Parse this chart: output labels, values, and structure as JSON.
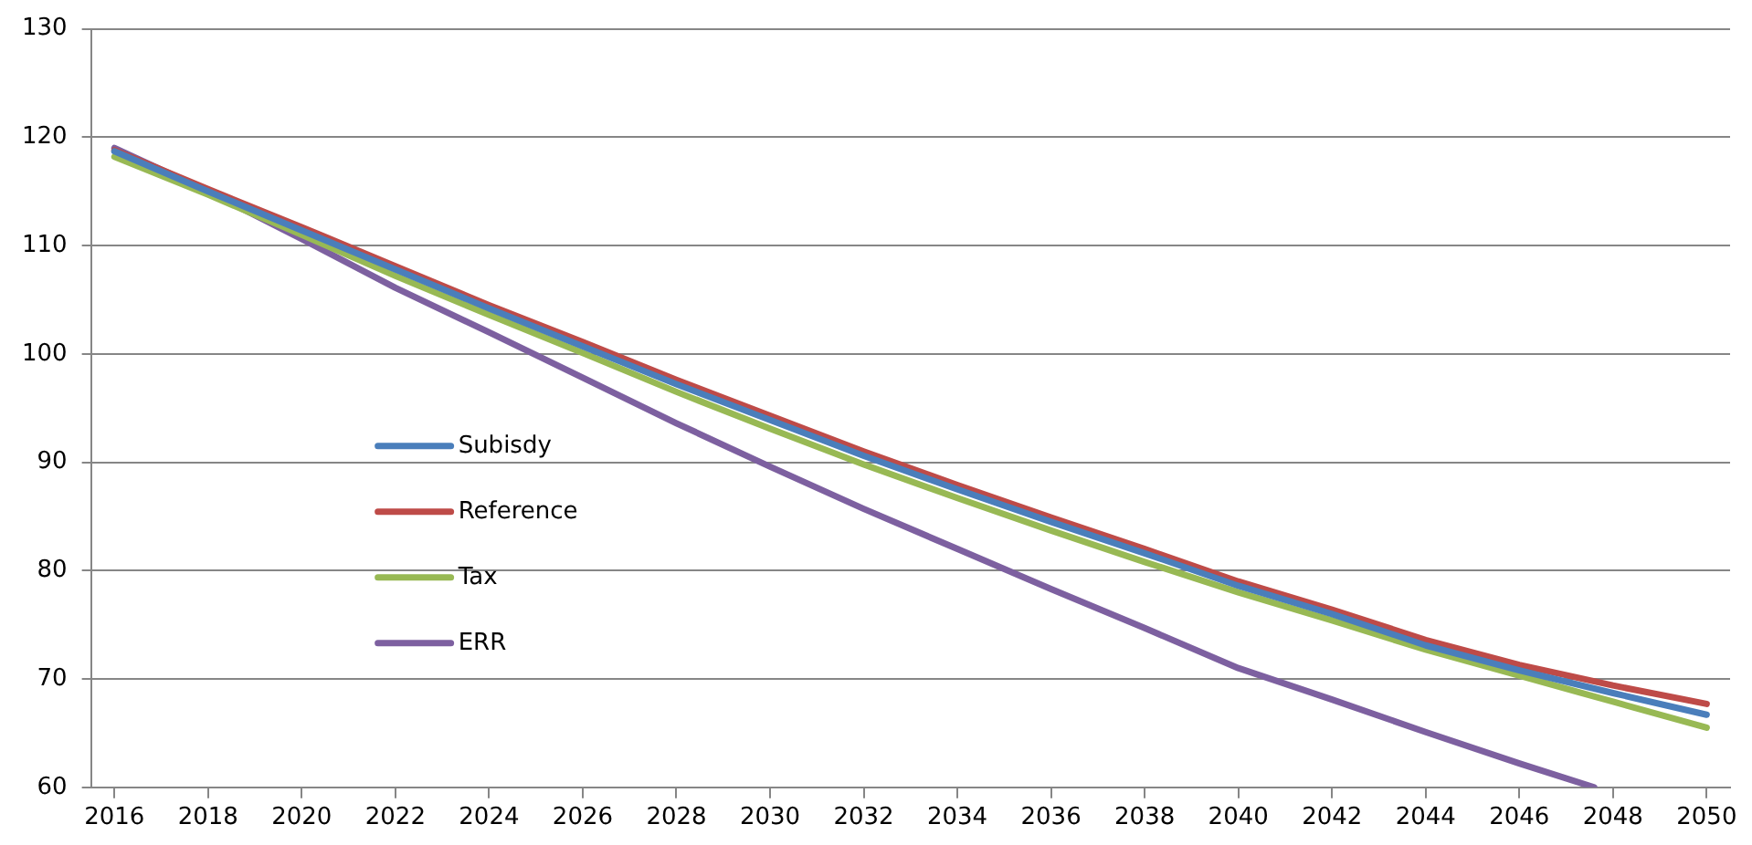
{
  "chart_data": {
    "type": "line",
    "x": [
      2016,
      2018,
      2020,
      2022,
      2024,
      2026,
      2028,
      2030,
      2032,
      2034,
      2036,
      2038,
      2040,
      2042,
      2044,
      2046,
      2048,
      2050
    ],
    "series": [
      {
        "name": "Subisdy",
        "color": "#4a7ebb",
        "values": [
          118.7,
          115.0,
          111.4,
          107.8,
          104.2,
          100.7,
          97.2,
          93.9,
          90.6,
          87.5,
          84.5,
          81.6,
          78.6,
          76.0,
          73.1,
          70.8,
          68.7,
          66.7
        ]
      },
      {
        "name": "Reference",
        "color": "#be4b48",
        "values": [
          118.8,
          115.2,
          111.7,
          108.1,
          104.5,
          101.1,
          97.6,
          94.3,
          91.0,
          87.9,
          84.9,
          82.0,
          79.0,
          76.4,
          73.6,
          71.3,
          69.4,
          67.7
        ]
      },
      {
        "name": "Tax",
        "color": "#98b954",
        "values": [
          118.2,
          114.7,
          111.0,
          107.2,
          103.6,
          100.1,
          96.5,
          93.1,
          89.8,
          86.7,
          83.7,
          80.8,
          78.0,
          75.4,
          72.7,
          70.3,
          67.9,
          65.5
        ]
      },
      {
        "name": "ERR",
        "color": "#7d60a0",
        "x": [
          2016,
          2018,
          2020,
          2022,
          2024,
          2026,
          2028,
          2030,
          2032,
          2034,
          2036,
          2038,
          2040,
          2042,
          2044,
          2046,
          2047.6
        ],
        "values": [
          119.0,
          115.0,
          110.6,
          106.1,
          102.0,
          97.8,
          93.6,
          89.6,
          85.7,
          82.0,
          78.3,
          74.7,
          71.0,
          68.1,
          65.1,
          62.2,
          60.0
        ]
      }
    ],
    "xlim": [
      2015.5,
      2050.5
    ],
    "xticks": [
      2016,
      2018,
      2020,
      2022,
      2024,
      2026,
      2028,
      2030,
      2032,
      2034,
      2036,
      2038,
      2040,
      2042,
      2044,
      2046,
      2048,
      2050
    ],
    "ylim": [
      60,
      130
    ],
    "yticks": [
      60,
      70,
      80,
      90,
      100,
      110,
      120,
      130
    ],
    "grid": "y",
    "legend": "left",
    "marker": "none",
    "line_style": "solid"
  }
}
